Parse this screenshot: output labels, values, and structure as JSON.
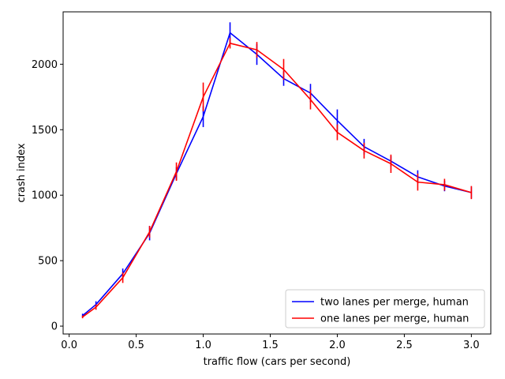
{
  "chart_data": {
    "type": "line",
    "title": "",
    "xlabel": "traffic flow (cars per second)",
    "ylabel": "crash index",
    "xlim": [
      -0.045,
      3.145
    ],
    "ylim": [
      -60,
      2400
    ],
    "xticks": [
      0.0,
      0.5,
      1.0,
      1.5,
      2.0,
      2.5,
      3.0
    ],
    "xtick_labels": [
      "0.0",
      "0.5",
      "1.0",
      "1.5",
      "2.0",
      "2.5",
      "3.0"
    ],
    "yticks": [
      0,
      500,
      1000,
      1500,
      2000
    ],
    "ytick_labels": [
      "0",
      "500",
      "1000",
      "1500",
      "2000"
    ],
    "legend_position": "bottom-right",
    "series": [
      {
        "name": "two lanes per merge, human",
        "color": "#0000ff",
        "x": [
          0.1,
          0.2,
          0.4,
          0.6,
          0.8,
          1.0,
          1.2,
          1.4,
          1.6,
          1.8,
          2.0,
          2.2,
          2.4,
          2.6,
          2.8,
          3.0
        ],
        "y": [
          80,
          165,
          400,
          710,
          1165,
          1600,
          2240,
          2075,
          1890,
          1780,
          1570,
          1370,
          1260,
          1140,
          1070,
          1020
        ],
        "yerr": [
          15,
          25,
          40,
          55,
          50,
          80,
          80,
          80,
          55,
          70,
          85,
          60,
          40,
          50,
          40,
          45
        ]
      },
      {
        "name": "one lanes per merge, human",
        "color": "#ff0000",
        "x": [
          0.1,
          0.2,
          0.4,
          0.6,
          0.8,
          1.0,
          1.2,
          1.4,
          1.6,
          1.8,
          2.0,
          2.2,
          2.4,
          2.6,
          2.8,
          3.0
        ],
        "y": [
          70,
          145,
          370,
          720,
          1180,
          1750,
          2160,
          2110,
          1960,
          1730,
          1480,
          1340,
          1240,
          1100,
          1080,
          1020
        ],
        "yerr": [
          10,
          20,
          40,
          45,
          70,
          110,
          40,
          60,
          80,
          75,
          60,
          60,
          70,
          65,
          45,
          50
        ]
      }
    ]
  }
}
